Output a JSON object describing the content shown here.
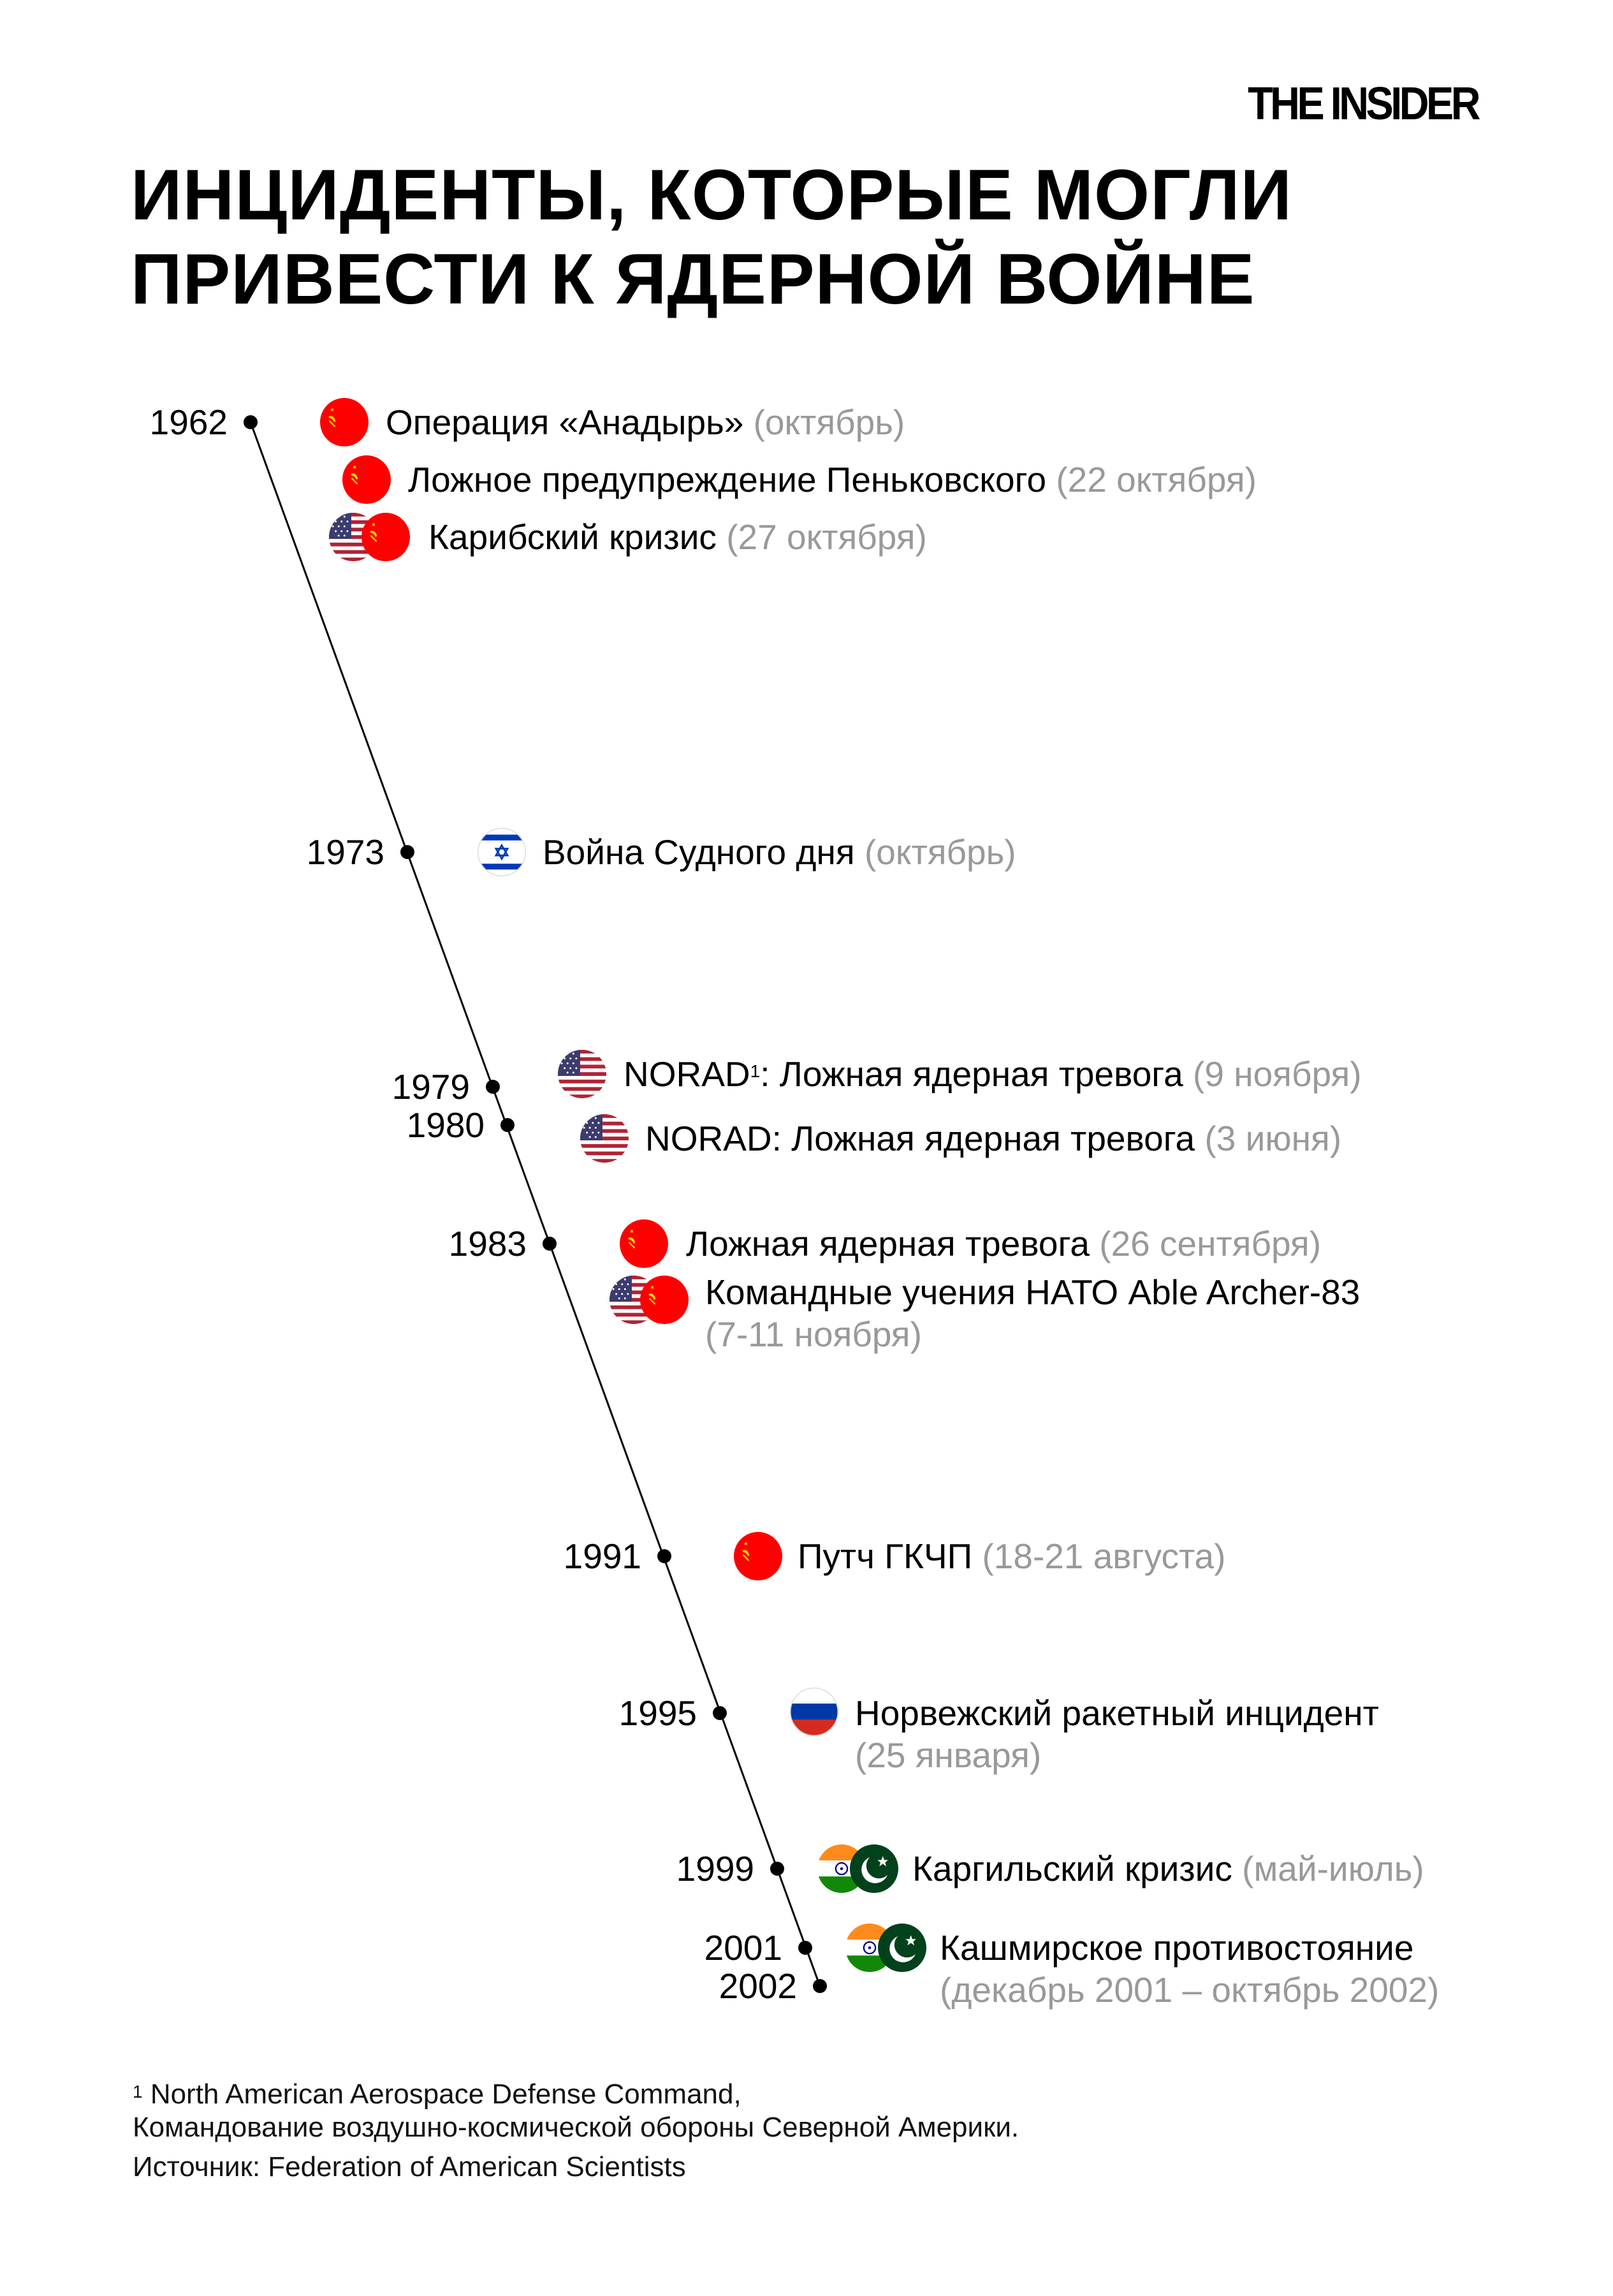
{
  "brand": "THE INSIDER",
  "title": [
    "ИНЦИДЕНТЫ, КОТОРЫЕ МОГЛИ",
    "ПРИВЕСТИ К ЯДЕРНОЙ ВОЙНЕ"
  ],
  "years": [
    "1962",
    "1973",
    "1979",
    "1980",
    "1983",
    "1991",
    "1995",
    "1999",
    "2001",
    "2002"
  ],
  "events": [
    {
      "title": "Операция «Анадырь»",
      "date": "(октябрь)",
      "flags": [
        "ussr"
      ]
    },
    {
      "title": "Ложное предупреждение Пеньковского",
      "date": "(22 октября)",
      "flags": [
        "ussr"
      ]
    },
    {
      "title": "Карибский кризис",
      "date": "(27 октября)",
      "flags": [
        "usa",
        "ussr"
      ]
    },
    {
      "title": "Война Судного дня",
      "date": "(октябрь)",
      "flags": [
        "israel"
      ]
    },
    {
      "title": "NORAD",
      "footnote_mark": "1",
      "title_rest": ": Ложная ядерная тревога",
      "date": "(9 ноября)",
      "flags": [
        "usa"
      ]
    },
    {
      "title": "NORAD: Ложная ядерная тревога",
      "date": "(3 июня)",
      "flags": [
        "usa"
      ]
    },
    {
      "title": "Ложная ядерная тревога",
      "date": "(26 сентября)",
      "flags": [
        "ussr"
      ]
    },
    {
      "title": "Командные учения НАТО Able Archer-83",
      "date": "(7-11 ноября)",
      "flags": [
        "usa",
        "ussr"
      ]
    },
    {
      "title": "Путч ГКЧП",
      "date": "(18-21 августа)",
      "flags": [
        "ussr"
      ]
    },
    {
      "title": "Норвежский ракетный инцидент",
      "date": "(25 января)",
      "flags": [
        "russia"
      ]
    },
    {
      "title": "Каргильский кризис",
      "date": "(май-июль)",
      "flags": [
        "india",
        "pakistan"
      ]
    },
    {
      "title": "Кашмирское противостояние",
      "date": "(декабрь 2001 – октябрь 2002)",
      "flags": [
        "india",
        "pakistan"
      ]
    }
  ],
  "footnote": {
    "mark": "1",
    "line1": "North American Aerospace Defense Command,",
    "line2": "Командование воздушно-космической обороны Северной Америки.",
    "source": "Источник: Federation of American Scientists"
  },
  "colors": {
    "date": "#999999",
    "ussr": "#ff0000",
    "usa_blue": "#3c3b6e",
    "usa_red": "#b22234",
    "israel_blue": "#0038b8",
    "india_saffron": "#ff9933",
    "india_green": "#138808",
    "pakistan_green": "#01411c"
  }
}
